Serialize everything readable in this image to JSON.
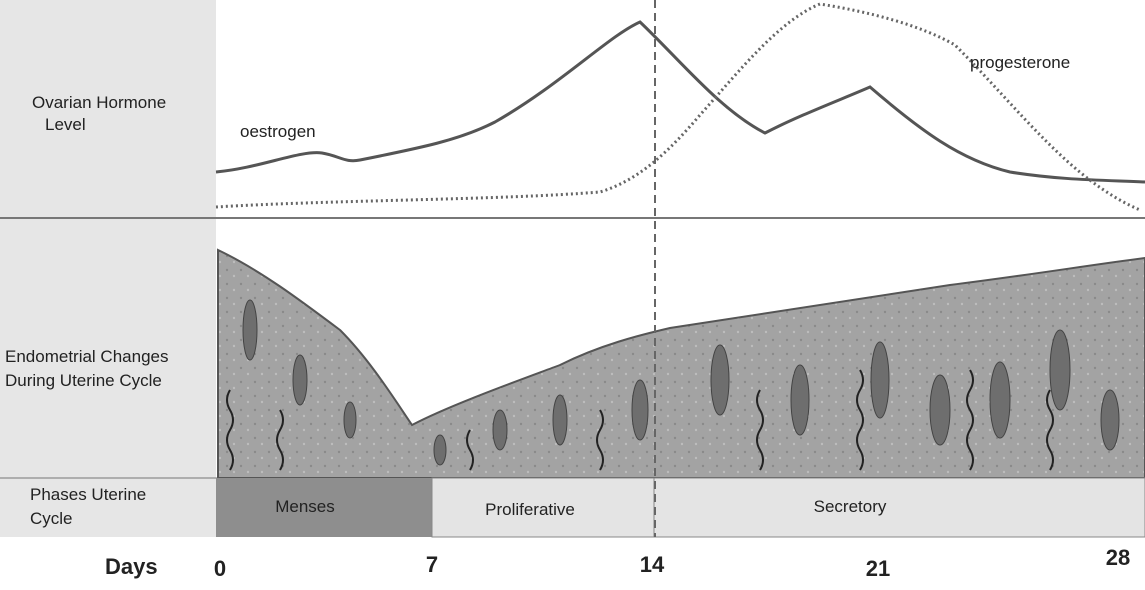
{
  "hormone_panel": {
    "label": [
      "Ovarian Hormone",
      "Level"
    ],
    "curves": [
      {
        "name": "oestrogen"
      },
      {
        "name": "progesterone"
      }
    ]
  },
  "endometrium_panel": {
    "label": [
      "Endometrial Changes",
      "During Uterine Cycle"
    ]
  },
  "phases_panel": {
    "label": [
      "Phases Uterine",
      "Cycle"
    ],
    "phases": [
      "Menses",
      "Proliferative",
      "Secretory"
    ]
  },
  "days": {
    "label": "Days",
    "ticks": [
      0,
      7,
      14,
      21,
      28
    ]
  }
}
